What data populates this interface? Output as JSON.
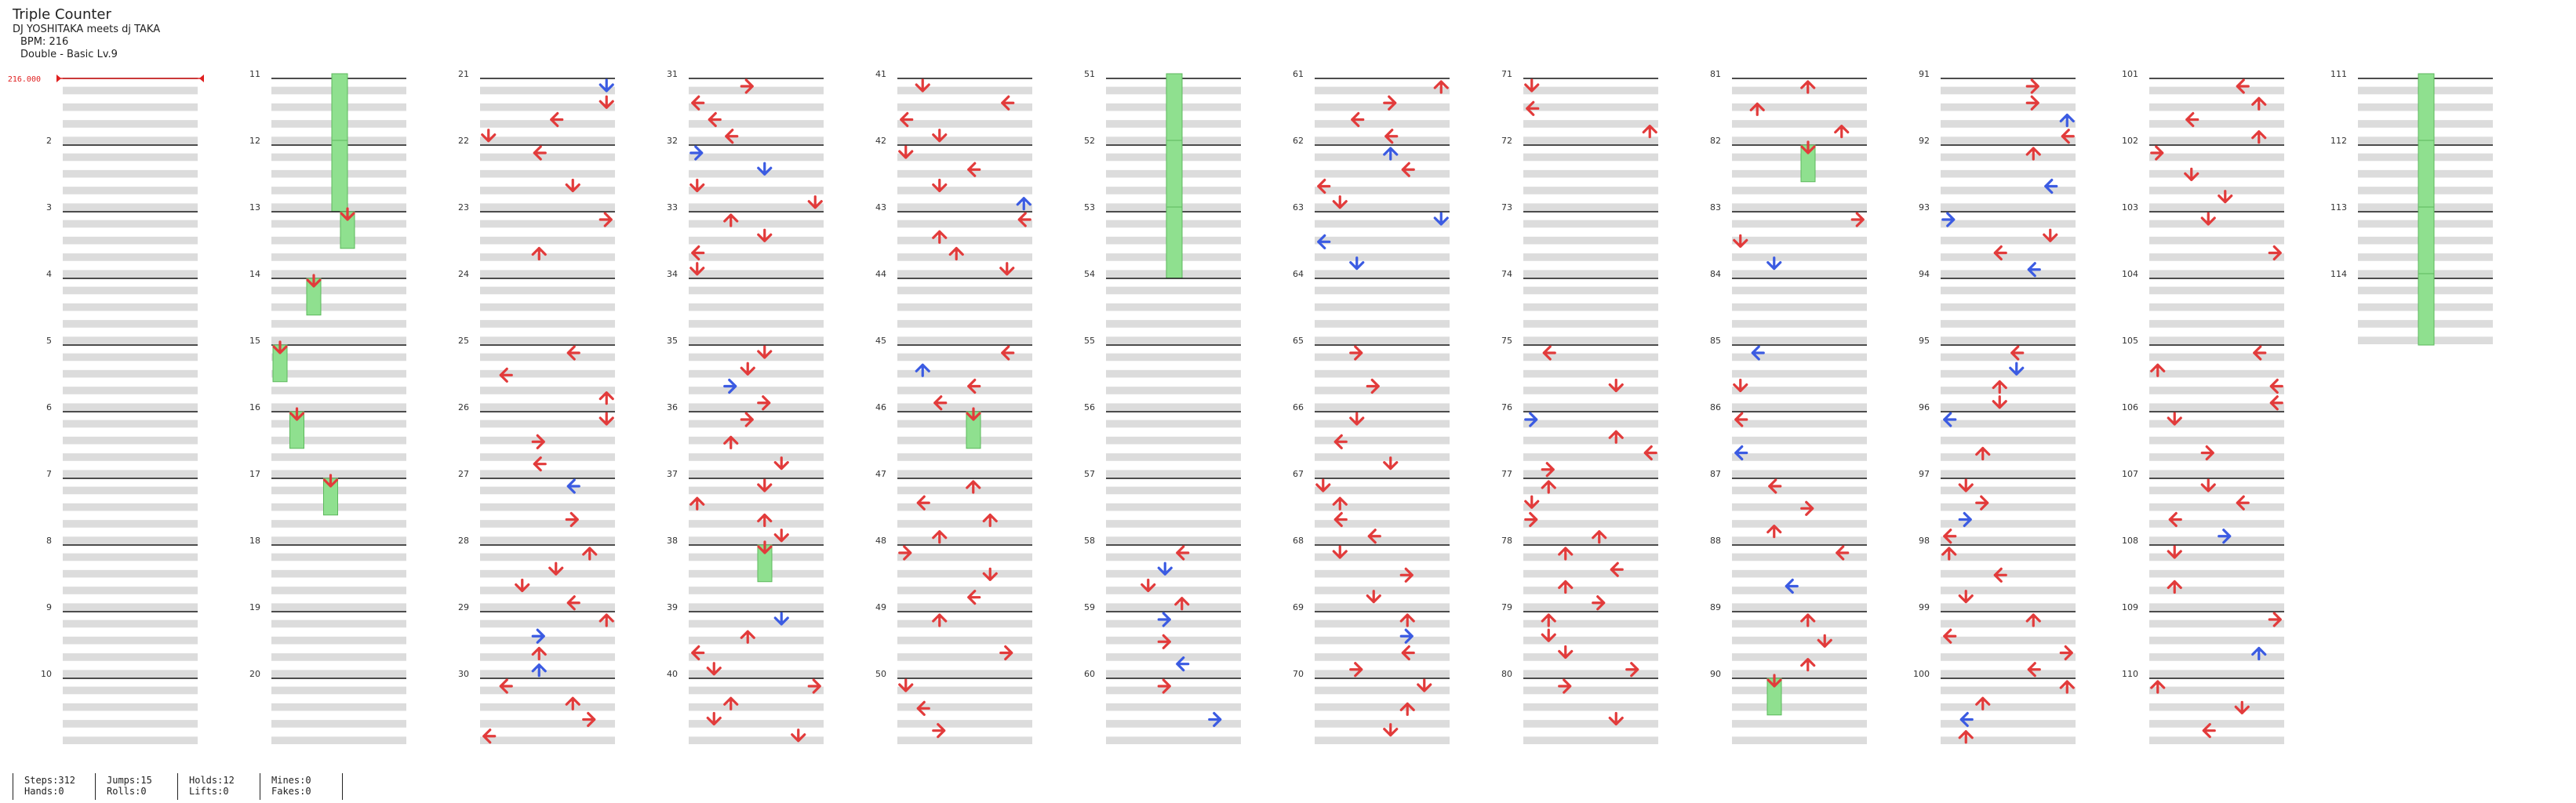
{
  "song": {
    "title": "Triple Counter",
    "artist": "DJ YOSHITAKA meets dj TAKA",
    "bpm_label": "BPM: 216",
    "difficulty_label": "Double - Basic  Lv.9"
  },
  "bpm_marker": {
    "label": "216.000",
    "color": "#e02020"
  },
  "colors": {
    "tap_red": "#e23b3b",
    "tap_blue": "#3b5be2",
    "hold_green": "#8fe08f",
    "hold_border": "#5cb85c"
  },
  "measures_per_column": 10,
  "total_measures": 114,
  "lanes": 8,
  "hold_measures": [
    11,
    12,
    51,
    52,
    53,
    111,
    112,
    113,
    114
  ],
  "notes": [
    {
      "m": 11,
      "lane": 4,
      "kind": "hold"
    },
    {
      "m": 13,
      "lane": 4,
      "kind": "hold"
    },
    {
      "m": 14,
      "lane": 2,
      "kind": "hold"
    },
    {
      "m": 15,
      "lane": 0,
      "kind": "hold"
    },
    {
      "m": 16,
      "lane": 1,
      "kind": "hold"
    },
    {
      "m": 17,
      "lane": 3,
      "kind": "hold"
    },
    {
      "m": 46,
      "lane": 4,
      "kind": "hold"
    },
    {
      "m": 38,
      "lane": 4,
      "kind": "hold"
    },
    {
      "m": 82,
      "lane": 4,
      "kind": "hold"
    },
    {
      "m": 90,
      "lane": 2,
      "kind": "hold"
    }
  ],
  "stats": [
    {
      "top": "Steps:312",
      "bottom": "Hands:0"
    },
    {
      "top": "Jumps:15",
      "bottom": "Rolls:0"
    },
    {
      "top": "Holds:12",
      "bottom": "Lifts:0"
    },
    {
      "top": "Mines:0",
      "bottom": "Fakes:0"
    }
  ]
}
